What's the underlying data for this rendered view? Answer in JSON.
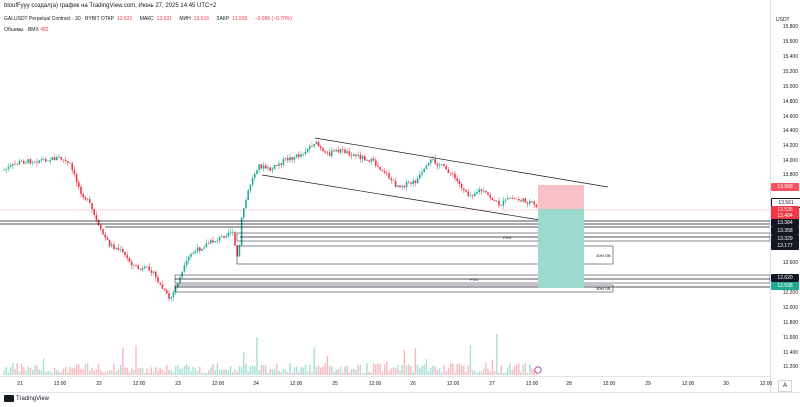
{
  "header": {
    "author_line": "bloufFyyy создал(а) график на TradingView.com, Июнь 27, 2025 14:45 UTC+2",
    "symbol": "GALUSDT Perpetual Contract · 30 · BYBIT",
    "ohlc": [
      {
        "label": "ОТКР",
        "value": "13.631"
      },
      {
        "label": "МАКС",
        "value": "13.631"
      },
      {
        "label": "МИН",
        "value": "13.516"
      },
      {
        "label": "ЗАКР",
        "value": "13.535"
      }
    ],
    "change": "−0.096 (−0.70%)",
    "volume_label": "Объемы · BMX",
    "volume_value": "482"
  },
  "price_axis": {
    "currency": "USDT",
    "ticks": [
      "15.800",
      "15.600",
      "15.400",
      "15.200",
      "15.000",
      "14.800",
      "14.600",
      "14.400",
      "14.200",
      "14.000",
      "13.800",
      "13.600",
      "13.400",
      "13.200",
      "13.000",
      "12.800",
      "12.600",
      "12.400",
      "12.200",
      "12.000",
      "11.800",
      "11.600",
      "11.400",
      "11.200"
    ]
  },
  "price_labels": [
    {
      "text": "13.968",
      "color": "#f7525f"
    },
    {
      "text": "13.561",
      "color": "#ffffff",
      "text_color": "#131722"
    },
    {
      "text": "13.535",
      "color": "#f23645"
    },
    {
      "text": "13.484",
      "color": "#f23645"
    },
    {
      "text": "13.384",
      "color": "#131722"
    },
    {
      "text": "13.358",
      "color": "#131722"
    },
    {
      "text": "13.329",
      "color": "#131722"
    },
    {
      "text": "13.177",
      "color": "#131722"
    },
    {
      "text": "12.620",
      "color": "#131722"
    },
    {
      "text": "12.508",
      "color": "#22ab94"
    }
  ],
  "time_axis": [
    "21",
    "12:00",
    "22",
    "12:00",
    "23",
    "12:00",
    "24",
    "12:00",
    "25",
    "12:00",
    "26",
    "12:00",
    "27",
    "12:00",
    "28",
    "12:00",
    "29",
    "12:00",
    "30",
    "12:00"
  ],
  "annotations": {
    "fvg_label": "FVG",
    "box_label": "30M OB"
  },
  "footer": {
    "brand": "TradingView"
  },
  "zoom_label": "A",
  "colors": {
    "up": "#22ab94",
    "down": "#f23645",
    "stop_zone": "#f7a9b0",
    "target_zone": "#8fd3c7"
  }
}
